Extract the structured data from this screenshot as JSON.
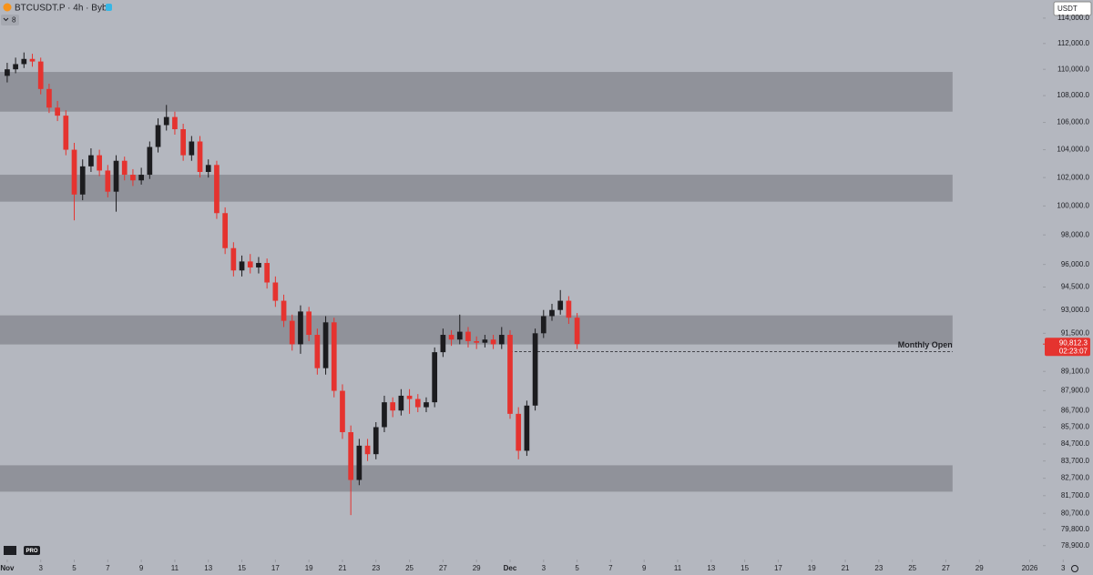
{
  "chart_data": {
    "type": "candlestick",
    "title": "BTCUSDT.P · 4h · Bybit",
    "indicators": "8",
    "currency": "USDT",
    "badge": "PRO",
    "log_scale": true,
    "up_color": "#1c1c1f",
    "down_color": "#e5332f",
    "zone_color": "#8a8c93",
    "x": [
      0,
      0.5,
      1,
      1.5,
      2,
      2.5,
      3,
      3.5,
      4,
      4.5,
      5,
      5.5,
      6,
      6.5,
      7,
      7.5,
      8,
      8.5,
      9,
      9.5,
      10,
      10.5,
      11,
      11.5,
      12,
      12.5,
      13,
      13.5,
      14,
      14.5,
      15,
      15.5,
      16,
      16.5,
      17,
      17.5,
      18,
      18.5,
      19,
      19.5,
      20,
      20.5,
      21,
      21.5,
      22,
      22.5,
      23,
      23.5,
      24,
      24.5,
      25,
      25.5,
      26,
      26.5,
      27,
      27.5,
      28,
      28.5,
      29,
      29.5,
      30,
      30.5,
      31,
      31.5,
      32,
      32.5,
      33,
      33.5,
      34
    ],
    "open": [
      109500,
      110000,
      110400,
      110800,
      110600,
      108500,
      107100,
      106500,
      104000,
      100800,
      102800,
      103600,
      102500,
      101000,
      103200,
      102200,
      101800,
      102200,
      104200,
      105800,
      106400,
      105500,
      103600,
      104600,
      102400,
      102900,
      99500,
      97100,
      95600,
      96200,
      95800,
      96100,
      94800,
      93600,
      92300,
      90800,
      92900,
      91400,
      89300,
      92200,
      87900,
      85400,
      82600,
      84600,
      84100,
      85700,
      87200,
      86700,
      87600,
      87400,
      86900,
      87200,
      90300,
      91400,
      91100,
      91600,
      91000,
      90900,
      91100,
      90800,
      91400,
      86500,
      84300,
      87000,
      91500,
      92600,
      93000,
      93600,
      92500
    ],
    "high": [
      110500,
      110900,
      111300,
      111200,
      110900,
      108900,
      107600,
      106900,
      104500,
      103300,
      104100,
      104000,
      102900,
      103600,
      103500,
      102600,
      102700,
      104600,
      106300,
      107300,
      106800,
      105900,
      105000,
      105000,
      103300,
      103200,
      99900,
      97500,
      96600,
      96700,
      96500,
      96400,
      95200,
      94000,
      92700,
      93300,
      93200,
      91800,
      92600,
      92500,
      88300,
      85800,
      85000,
      85000,
      86000,
      87600,
      87500,
      88000,
      88000,
      87700,
      87500,
      90600,
      91800,
      91700,
      92700,
      91900,
      91300,
      91400,
      91400,
      91900,
      91700,
      86900,
      87300,
      91800,
      93000,
      93400,
      94300,
      93900,
      92800
    ],
    "low": [
      109000,
      109700,
      110100,
      110200,
      108100,
      106700,
      106100,
      103600,
      99000,
      100400,
      102400,
      102100,
      100600,
      99600,
      101800,
      101400,
      101500,
      101900,
      103800,
      105400,
      105100,
      103200,
      103200,
      102000,
      102000,
      99100,
      96700,
      95200,
      95200,
      95400,
      95400,
      94400,
      93200,
      91900,
      90400,
      90200,
      91000,
      88900,
      88900,
      87500,
      85000,
      80600,
      82300,
      83700,
      83800,
      85400,
      86300,
      86400,
      86500,
      86600,
      86600,
      86900,
      90000,
      90700,
      90800,
      90600,
      90500,
      90600,
      90500,
      90500,
      86200,
      83800,
      84000,
      86700,
      91200,
      92300,
      92700,
      92100,
      90500
    ],
    "close": [
      110000,
      110400,
      110800,
      110600,
      108500,
      107100,
      106500,
      104000,
      100800,
      102800,
      103600,
      102500,
      101000,
      103200,
      102200,
      101800,
      102200,
      104200,
      105800,
      106400,
      105500,
      103600,
      104600,
      102400,
      102900,
      99500,
      97100,
      95600,
      96200,
      95800,
      96100,
      94800,
      93600,
      92300,
      90800,
      92900,
      91400,
      89300,
      92200,
      87900,
      85400,
      82600,
      84600,
      84100,
      85700,
      87200,
      86700,
      87600,
      87400,
      86900,
      87200,
      90300,
      91400,
      91100,
      91600,
      91000,
      90900,
      91100,
      90800,
      91400,
      86500,
      84300,
      87000,
      91500,
      92600,
      93000,
      93600,
      92500,
      90812.3
    ],
    "zones": [
      {
        "from": 106800,
        "to": 109800
      },
      {
        "from": 100300,
        "to": 102200
      },
      {
        "from": 90790,
        "to": 92650
      },
      {
        "from": 81930,
        "to": 83450
      }
    ],
    "zone_end": 56.4,
    "monthly_open": {
      "label": "Monthly Open",
      "value": 90330,
      "x_start": 30
    },
    "last_price": {
      "value": 90812.3,
      "label": "90,812.3",
      "countdown": "02:23:07"
    },
    "xlim": [
      -0.43,
      61.79
    ],
    "ylim": [
      78140,
      115450
    ],
    "xticks": [
      {
        "value": 0,
        "label": "Nov"
      },
      {
        "value": 2,
        "label": "3"
      },
      {
        "value": 4,
        "label": "5"
      },
      {
        "value": 6,
        "label": "7"
      },
      {
        "value": 8,
        "label": "9"
      },
      {
        "value": 10,
        "label": "11"
      },
      {
        "value": 12,
        "label": "13"
      },
      {
        "value": 14,
        "label": "15"
      },
      {
        "value": 16,
        "label": "17"
      },
      {
        "value": 18,
        "label": "19"
      },
      {
        "value": 20,
        "label": "21"
      },
      {
        "value": 22,
        "label": "23"
      },
      {
        "value": 24,
        "label": "25"
      },
      {
        "value": 26,
        "label": "27"
      },
      {
        "value": 28,
        "label": "29"
      },
      {
        "value": 30,
        "label": "Dec"
      },
      {
        "value": 32,
        "label": "3"
      },
      {
        "value": 34,
        "label": "5"
      },
      {
        "value": 36,
        "label": "7"
      },
      {
        "value": 38,
        "label": "9"
      },
      {
        "value": 40,
        "label": "11"
      },
      {
        "value": 42,
        "label": "13"
      },
      {
        "value": 44,
        "label": "15"
      },
      {
        "value": 46,
        "label": "17"
      },
      {
        "value": 48,
        "label": "19"
      },
      {
        "value": 50,
        "label": "21"
      },
      {
        "value": 52,
        "label": "23"
      },
      {
        "value": 54,
        "label": "25"
      },
      {
        "value": 56,
        "label": "27"
      },
      {
        "value": 58,
        "label": "29"
      },
      {
        "value": 61,
        "label": "2026"
      },
      {
        "value": 63,
        "label": "3"
      }
    ],
    "yticks": [
      {
        "value": 114000,
        "label": "114,000.0"
      },
      {
        "value": 112000,
        "label": "112,000.0"
      },
      {
        "value": 110000,
        "label": "110,000.0"
      },
      {
        "value": 108000,
        "label": "108,000.0"
      },
      {
        "value": 106000,
        "label": "106,000.0"
      },
      {
        "value": 104000,
        "label": "104,000.0"
      },
      {
        "value": 102000,
        "label": "102,000.0"
      },
      {
        "value": 100000,
        "label": "100,000.0"
      },
      {
        "value": 98000,
        "label": "98,000.0"
      },
      {
        "value": 96000,
        "label": "96,000.0"
      },
      {
        "value": 94500,
        "label": "94,500.0"
      },
      {
        "value": 93000,
        "label": "93,000.0"
      },
      {
        "value": 91500,
        "label": "91,500.0"
      },
      {
        "value": 89100,
        "label": "89,100.0"
      },
      {
        "value": 87900,
        "label": "87,900.0"
      },
      {
        "value": 86700,
        "label": "86,700.0"
      },
      {
        "value": 85700,
        "label": "85,700.0"
      },
      {
        "value": 84700,
        "label": "84,700.0"
      },
      {
        "value": 83700,
        "label": "83,700.0"
      },
      {
        "value": 82700,
        "label": "82,700.0"
      },
      {
        "value": 81700,
        "label": "81,700.0"
      },
      {
        "value": 80700,
        "label": "80,700.0"
      },
      {
        "value": 79800,
        "label": "79,800.0"
      },
      {
        "value": 78900,
        "label": "78,900.0"
      }
    ]
  }
}
